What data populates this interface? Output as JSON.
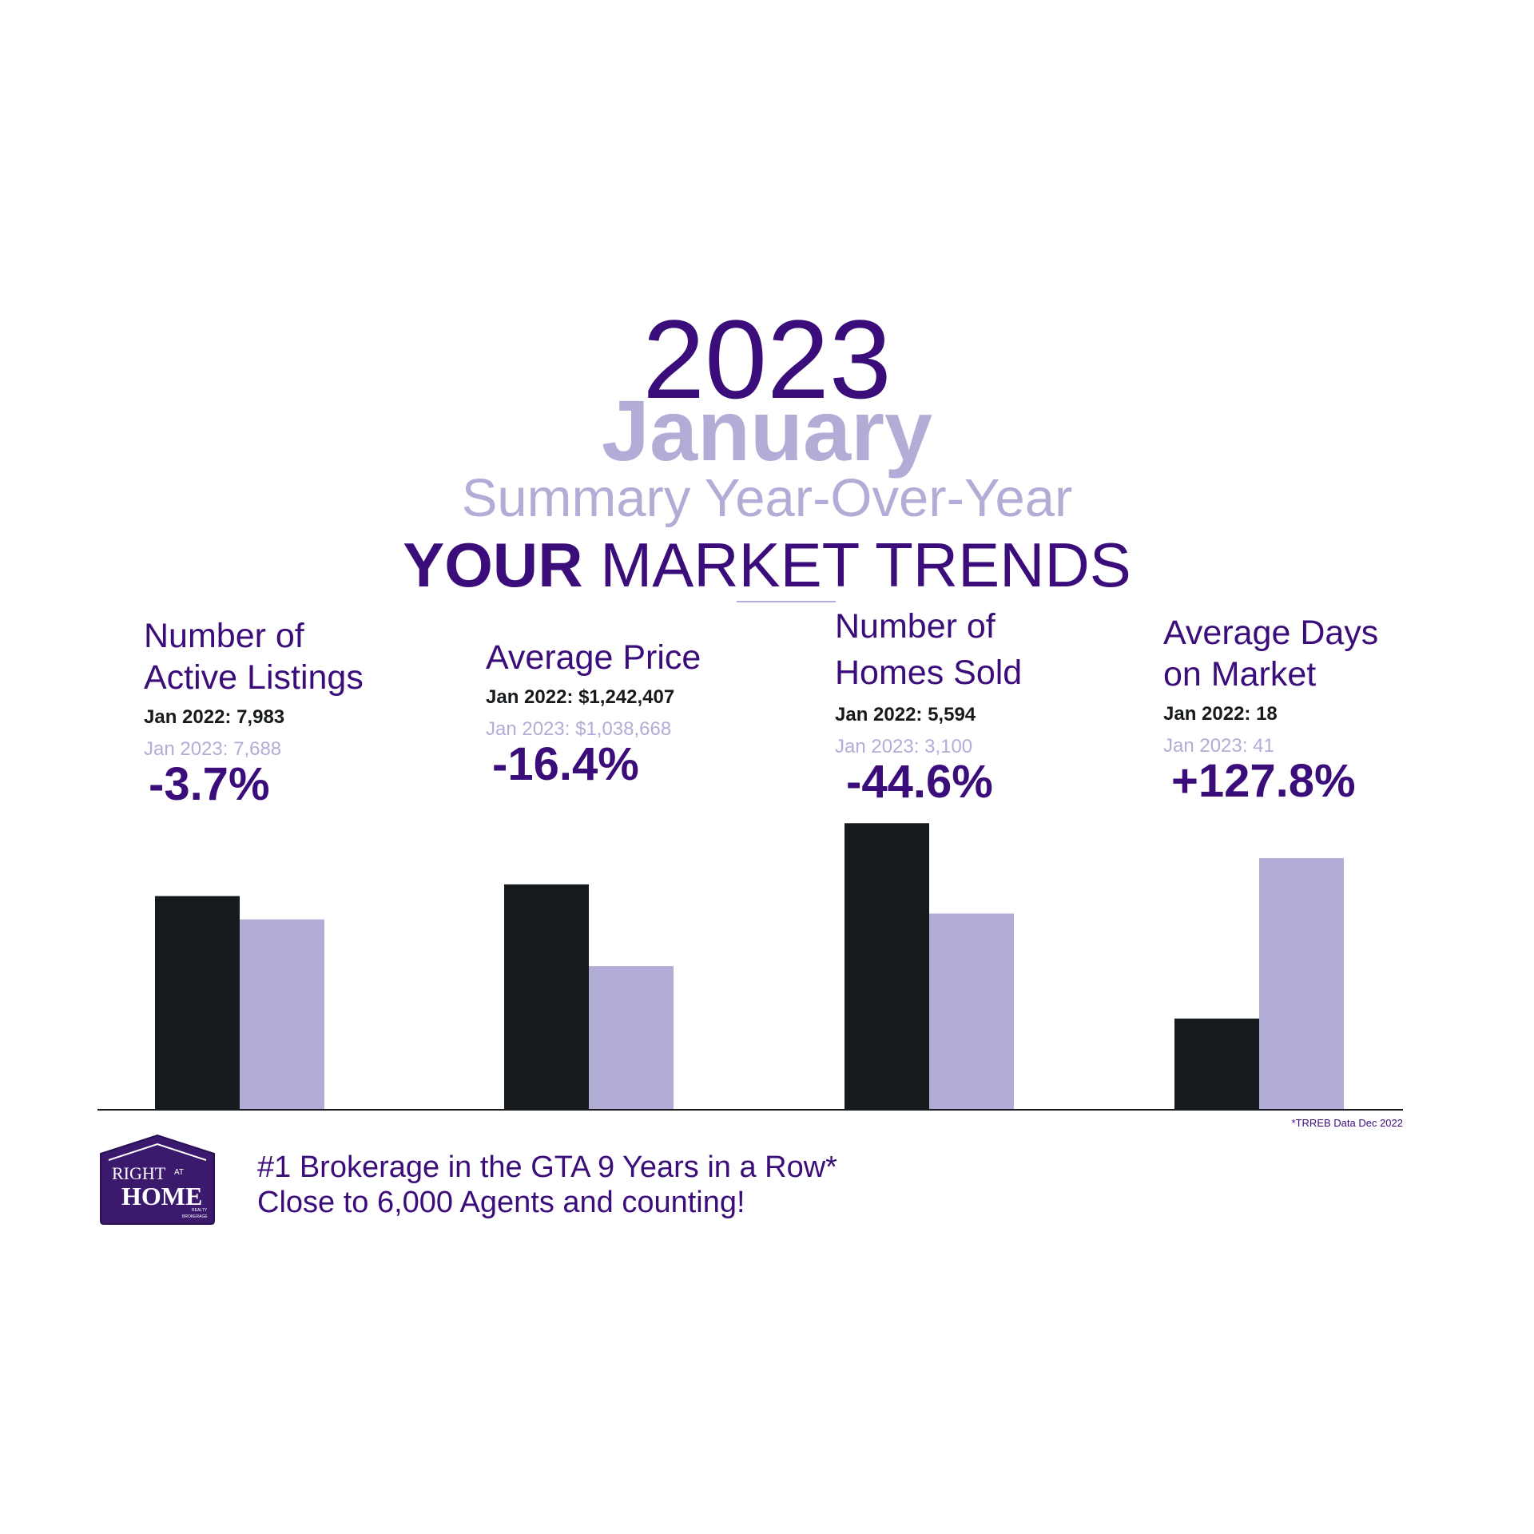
{
  "header": {
    "year": "2023",
    "month": "January",
    "subtitle": "Summary Year-Over-Year",
    "trends_bold": "YOUR",
    "trends_rest": " MARKET TRENDS"
  },
  "colors": {
    "jan_2022": "#171a1c",
    "jan_2023": "#b1add6",
    "primary": "#3b0d7a"
  },
  "metrics": [
    {
      "title_line1": "Number of",
      "title_line2": "Active Listings",
      "prev": "Jan 2022: 7,983",
      "curr": "Jan 2023: 7,688",
      "change": "-3.7%"
    },
    {
      "title_line1": "",
      "title_line2": "Average Price",
      "prev": "Jan 2022: $1,242,407",
      "curr": "Jan 2023: $1,038,668",
      "change": "-16.4%"
    },
    {
      "title_line1": "Number of",
      "title_line2": "Homes Sold",
      "prev": "Jan 2022: 5,594",
      "curr": "Jan 2023: 3,100",
      "change": "-44.6%"
    },
    {
      "title_line1": "Average Days",
      "title_line2": "on Market",
      "prev": "Jan 2022: 18",
      "curr": "Jan 2023: 41",
      "change": "+127.8%"
    }
  ],
  "chart_data": {
    "type": "bar",
    "categories": [
      "Number of Active Listings",
      "Average Price",
      "Number of Homes Sold",
      "Average Days on Market"
    ],
    "series": [
      {
        "name": "Jan 2022",
        "values": [
          7983,
          1242407,
          5594,
          18
        ]
      },
      {
        "name": "Jan 2023",
        "values": [
          7688,
          1038668,
          3100,
          41
        ]
      }
    ],
    "bar_relative_heights": {
      "Jan 2022": [
        0.73,
        0.77,
        0.98,
        0.31
      ],
      "Jan 2023": [
        0.65,
        0.49,
        0.67,
        0.86
      ]
    },
    "source_note": "*TRREB Data Dec 2022"
  },
  "footer": {
    "logo_line1": "RIGHT",
    "logo_at": "AT",
    "logo_line2": "HOME",
    "logo_sub1": "REALTY",
    "logo_sub2": "BROKERAGE",
    "tagline1": "#1 Brokerage in the GTA 9 Years in a Row*",
    "tagline2": "Close to 6,000 Agents and counting!"
  }
}
